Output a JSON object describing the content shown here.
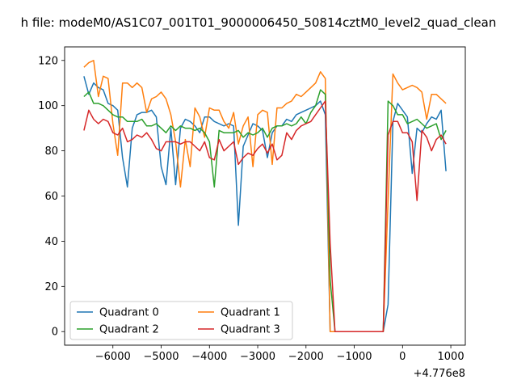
{
  "chart_data": {
    "type": "line",
    "title": "h file: modeM0/AS1C07_001T01_9000006450_50814cztM0_level2_quad_clean",
    "xlabel": "",
    "ylabel": "",
    "x_offset_label": "+4.776e8",
    "xlim": [
      -7000,
      1300
    ],
    "ylim": [
      -6,
      126
    ],
    "xticks": [
      -6000,
      -5000,
      -4000,
      -3000,
      -2000,
      -1000,
      0,
      1000
    ],
    "xtick_labels": [
      "−6000",
      "−5000",
      "−4000",
      "−3000",
      "−2000",
      "−1000",
      "0",
      "1000"
    ],
    "yticks": [
      0,
      20,
      40,
      60,
      80,
      100,
      120
    ],
    "ytick_labels": [
      "0",
      "20",
      "40",
      "60",
      "80",
      "100",
      "120"
    ],
    "grid": false,
    "legend_position": "lower-left",
    "legend_columns": 2,
    "x": [
      -6600,
      -6500,
      -6400,
      -6300,
      -6200,
      -6100,
      -6000,
      -5900,
      -5800,
      -5700,
      -5600,
      -5500,
      -5400,
      -5300,
      -5200,
      -5100,
      -5000,
      -4900,
      -4800,
      -4700,
      -4600,
      -4500,
      -4400,
      -4300,
      -4200,
      -4100,
      -4000,
      -3900,
      -3800,
      -3700,
      -3600,
      -3500,
      -3400,
      -3300,
      -3200,
      -3100,
      -3000,
      -2900,
      -2800,
      -2700,
      -2600,
      -2500,
      -2400,
      -2300,
      -2200,
      -2100,
      -2000,
      -1900,
      -1800,
      -1700,
      -1600,
      -1500,
      -1400,
      -500,
      -400,
      -300,
      -200,
      -100,
      0,
      100,
      200,
      300,
      400,
      500,
      600,
      700,
      800,
      900
    ],
    "series": [
      {
        "name": "Quadrant 0",
        "color": "#1f77b4",
        "values": [
          113,
          105,
          110,
          108,
          107,
          101,
          100,
          98,
          77,
          64,
          90,
          96,
          97,
          97,
          98,
          95,
          73,
          65,
          90,
          65,
          90,
          94,
          93,
          91,
          88,
          95,
          95,
          93,
          92,
          91,
          92,
          91,
          47,
          82,
          87,
          92,
          91,
          89,
          77,
          88,
          91,
          91,
          94,
          93,
          96,
          97,
          98,
          99,
          100,
          102,
          96,
          0,
          0,
          0,
          0,
          12,
          93,
          101,
          98,
          95,
          70,
          90,
          88,
          92,
          95,
          94,
          98,
          71
        ]
      },
      {
        "name": "Quadrant 1",
        "color": "#ff7f0e",
        "values": [
          117,
          119,
          120,
          104,
          113,
          112,
          92,
          78,
          110,
          110,
          108,
          110,
          108,
          97,
          103,
          104,
          106,
          103,
          96,
          84,
          64,
          85,
          73,
          99,
          95,
          86,
          99,
          98,
          98,
          93,
          90,
          97,
          83,
          91,
          95,
          73,
          96,
          98,
          97,
          74,
          99,
          99,
          101,
          102,
          105,
          104,
          106,
          108,
          110,
          115,
          112,
          0,
          0,
          0,
          0,
          58,
          114,
          110,
          107,
          108,
          109,
          108,
          106,
          94,
          105,
          105,
          103,
          101
        ]
      },
      {
        "name": "Quadrant 2",
        "color": "#2ca02c",
        "values": [
          104,
          106,
          101,
          101,
          100,
          98,
          96,
          95,
          95,
          93,
          93,
          93,
          94,
          91,
          91,
          92,
          90,
          88,
          91,
          89,
          91,
          90,
          90,
          89,
          90,
          88,
          84,
          64,
          89,
          88,
          88,
          88,
          89,
          86,
          88,
          87,
          88,
          90,
          86,
          90,
          91,
          91,
          92,
          91,
          92,
          95,
          92,
          97,
          100,
          107,
          105,
          23,
          0,
          0,
          0,
          102,
          100,
          96,
          96,
          92,
          93,
          94,
          92,
          90,
          91,
          92,
          85,
          89
        ]
      },
      {
        "name": "Quadrant 3",
        "color": "#d62728",
        "values": [
          89,
          98,
          94,
          92,
          94,
          93,
          88,
          87,
          90,
          84,
          85,
          87,
          86,
          88,
          85,
          81,
          80,
          84,
          84,
          84,
          83,
          84,
          84,
          82,
          80,
          84,
          77,
          76,
          85,
          80,
          82,
          84,
          74,
          77,
          79,
          78,
          81,
          83,
          79,
          83,
          76,
          78,
          88,
          85,
          89,
          91,
          92,
          93,
          96,
          99,
          102,
          39,
          0,
          0,
          0,
          87,
          93,
          93,
          88,
          88,
          84,
          58,
          89,
          86,
          80,
          85,
          87,
          83
        ]
      }
    ]
  }
}
